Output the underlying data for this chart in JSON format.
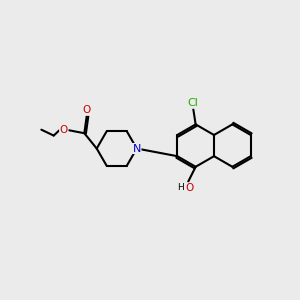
{
  "bg": "#ebebeb",
  "bc": "#000000",
  "lw": 1.5,
  "dlw": 1.4,
  "O_color": "#cc0000",
  "N_color": "#0000cc",
  "Cl_color": "#22aa00",
  "fs": 7.5,
  "xlim": [
    0,
    10
  ],
  "ylim": [
    0,
    10
  ]
}
